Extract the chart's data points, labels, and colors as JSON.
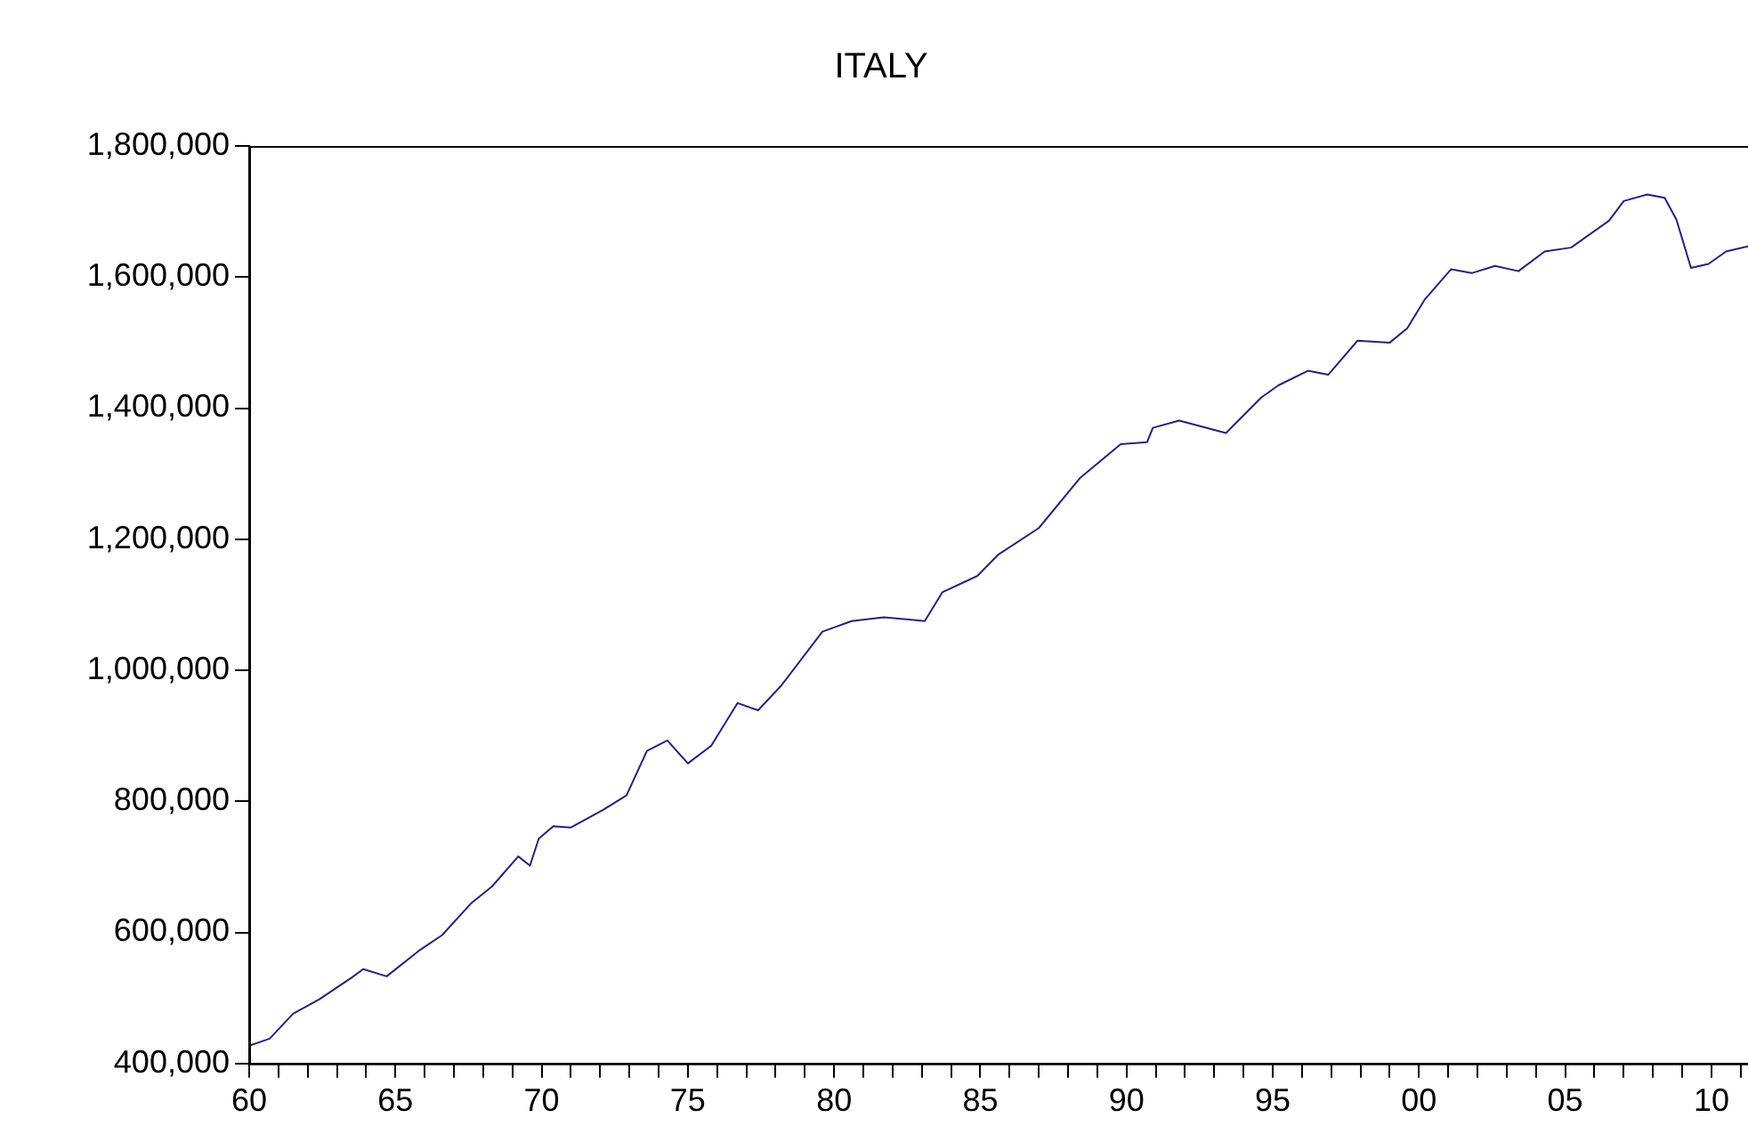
{
  "chart_data": {
    "type": "line",
    "title": "ITALY",
    "x": [
      1960,
      1960.7,
      1961.5,
      1962.4,
      1963.5,
      1963.9,
      1964.7,
      1965.8,
      1966.6,
      1967.6,
      1968.3,
      1969.2,
      1969.6,
      1969.9,
      1970.4,
      1971,
      1972.1,
      1972.9,
      1973.6,
      1974.3,
      1975,
      1975.8,
      1976.7,
      1977.4,
      1978.2,
      1979.6,
      1980.6,
      1981.7,
      1983.1,
      1983.7,
      1984.9,
      1985.6,
      1987,
      1988.4,
      1989.8,
      1990.7,
      1990.9,
      1991.8,
      1993.4,
      1994.6,
      1995.2,
      1996.2,
      1996.9,
      1997.9,
      1999,
      1999.6,
      2000.2,
      2001.1,
      2001.8,
      2002.6,
      2003.4,
      2004.3,
      2005.2,
      2006.5,
      2007,
      2007.8,
      2008.4,
      2008.8,
      2009.3,
      2009.9,
      2010.5,
      2011.25
    ],
    "series": [
      {
        "color": "#23237a",
        "values": [
          427000,
          438000,
          476000,
          498000,
          531000,
          544000,
          533000,
          572000,
          596000,
          645000,
          670000,
          716000,
          702000,
          743000,
          762000,
          760000,
          787000,
          809000,
          877000,
          893000,
          858000,
          885000,
          950000,
          939000,
          977000,
          1059000,
          1075000,
          1081000,
          1075000,
          1119000,
          1144000,
          1176000,
          1217000,
          1293000,
          1345000,
          1348000,
          1370000,
          1381000,
          1362000,
          1416000,
          1435000,
          1457000,
          1451000,
          1503000,
          1500000,
          1522000,
          1566000,
          1612000,
          1606000,
          1617000,
          1609000,
          1639000,
          1645000,
          1686000,
          1716000,
          1726000,
          1721000,
          1688000,
          1614000,
          1620000,
          1639000,
          1647000
        ]
      }
    ],
    "xlim": [
      1960,
      2011.25
    ],
    "xticks": [
      {
        "value": 1960,
        "label": "60"
      },
      {
        "value": 1961,
        "label": null
      },
      {
        "value": 1962,
        "label": null
      },
      {
        "value": 1963,
        "label": null
      },
      {
        "value": 1964,
        "label": null
      },
      {
        "value": 1965,
        "label": "65"
      },
      {
        "value": 1966,
        "label": null
      },
      {
        "value": 1967,
        "label": null
      },
      {
        "value": 1968,
        "label": null
      },
      {
        "value": 1969,
        "label": null
      },
      {
        "value": 1970,
        "label": "70"
      },
      {
        "value": 1971,
        "label": null
      },
      {
        "value": 1972,
        "label": null
      },
      {
        "value": 1973,
        "label": null
      },
      {
        "value": 1974,
        "label": null
      },
      {
        "value": 1975,
        "label": "75"
      },
      {
        "value": 1976,
        "label": null
      },
      {
        "value": 1977,
        "label": null
      },
      {
        "value": 1978,
        "label": null
      },
      {
        "value": 1979,
        "label": null
      },
      {
        "value": 1980,
        "label": "80"
      },
      {
        "value": 1981,
        "label": null
      },
      {
        "value": 1982,
        "label": null
      },
      {
        "value": 1983,
        "label": null
      },
      {
        "value": 1984,
        "label": null
      },
      {
        "value": 1985,
        "label": "85"
      },
      {
        "value": 1986,
        "label": null
      },
      {
        "value": 1987,
        "label": null
      },
      {
        "value": 1988,
        "label": null
      },
      {
        "value": 1989,
        "label": null
      },
      {
        "value": 1990,
        "label": "90"
      },
      {
        "value": 1991,
        "label": null
      },
      {
        "value": 1992,
        "label": null
      },
      {
        "value": 1993,
        "label": null
      },
      {
        "value": 1994,
        "label": null
      },
      {
        "value": 1995,
        "label": "95"
      },
      {
        "value": 1996,
        "label": null
      },
      {
        "value": 1997,
        "label": null
      },
      {
        "value": 1998,
        "label": null
      },
      {
        "value": 1999,
        "label": null
      },
      {
        "value": 2000,
        "label": "00"
      },
      {
        "value": 2001,
        "label": null
      },
      {
        "value": 2002,
        "label": null
      },
      {
        "value": 2003,
        "label": null
      },
      {
        "value": 2004,
        "label": null
      },
      {
        "value": 2005,
        "label": "05"
      },
      {
        "value": 2006,
        "label": null
      },
      {
        "value": 2007,
        "label": null
      },
      {
        "value": 2008,
        "label": null
      },
      {
        "value": 2009,
        "label": null
      },
      {
        "value": 2010,
        "label": "10"
      },
      {
        "value": 2011,
        "label": null
      }
    ],
    "ylim": [
      400000,
      1800000
    ],
    "yticks": [
      {
        "value": 400000,
        "label": "400,000"
      },
      {
        "value": 600000,
        "label": "600,000"
      },
      {
        "value": 800000,
        "label": "800,000"
      },
      {
        "value": 1000000,
        "label": "1,000,000"
      },
      {
        "value": 1200000,
        "label": "1,200,000"
      },
      {
        "value": 1400000,
        "label": "1,400,000"
      },
      {
        "value": 1600000,
        "label": "1,600,000"
      },
      {
        "value": 1800000,
        "label": "1,800,000"
      }
    ],
    "grid": false,
    "legend": false,
    "marker": "none",
    "line_style": "solid"
  }
}
